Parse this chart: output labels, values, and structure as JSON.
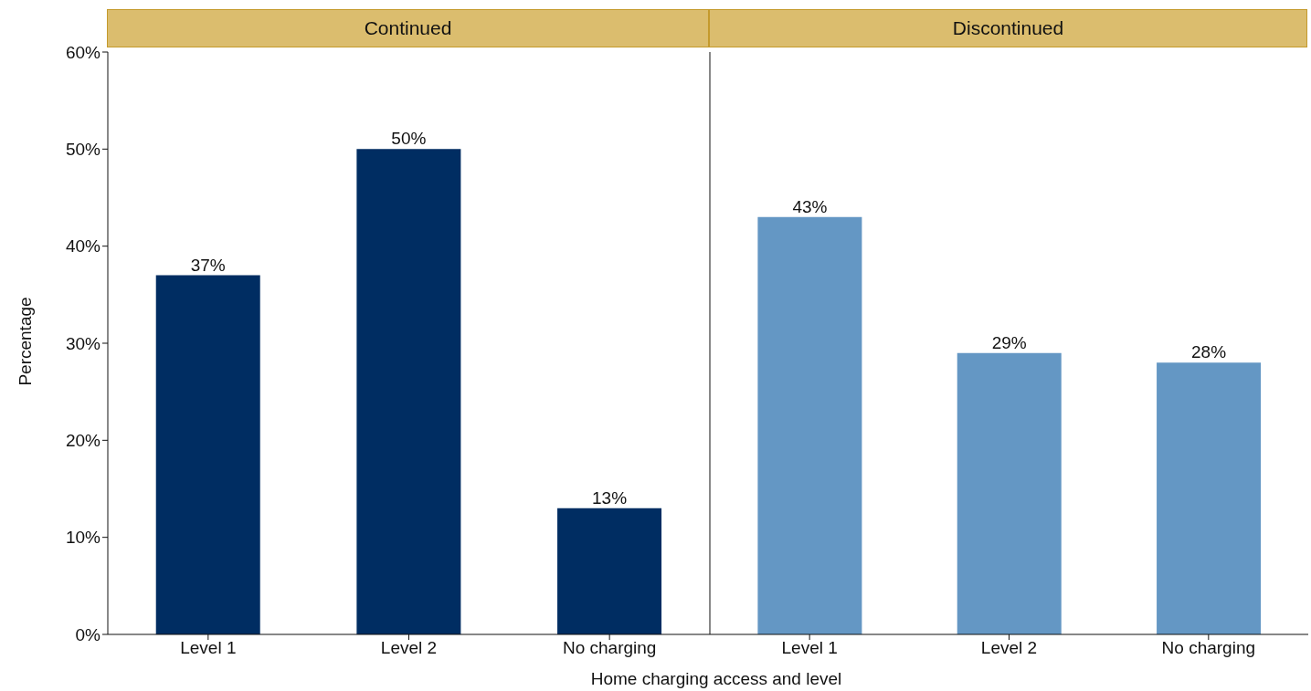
{
  "chart_data": [
    {
      "type": "bar",
      "title": "Continued",
      "xlabel": "Home charging access and level",
      "ylabel": "Percentage",
      "categories": [
        "Level 1",
        "Level 2",
        "No charging"
      ],
      "series": [
        {
          "color": "#002d62",
          "values": [
            37,
            50,
            13
          ],
          "value_labels": [
            "37%",
            "50%",
            "13%"
          ]
        }
      ],
      "ylim": [
        0,
        60
      ],
      "yticks": [
        {
          "value": 0,
          "label": "0%"
        },
        {
          "value": 10,
          "label": "10%"
        },
        {
          "value": 20,
          "label": "20%"
        },
        {
          "value": 30,
          "label": "30%"
        },
        {
          "value": 40,
          "label": "40%"
        },
        {
          "value": 50,
          "label": "50%"
        },
        {
          "value": 60,
          "label": "60%"
        }
      ],
      "grid": false,
      "legend": false
    },
    {
      "type": "bar",
      "title": "Discontinued",
      "categories": [
        "Level 1",
        "Level 2",
        "No charging"
      ],
      "series": [
        {
          "color": "#6497c4",
          "values": [
            43,
            29,
            28
          ],
          "value_labels": [
            "43%",
            "29%",
            "28%"
          ]
        }
      ],
      "ylim": [
        0,
        60
      ],
      "tick_labels": "x",
      "grid": false,
      "legend": false
    }
  ]
}
